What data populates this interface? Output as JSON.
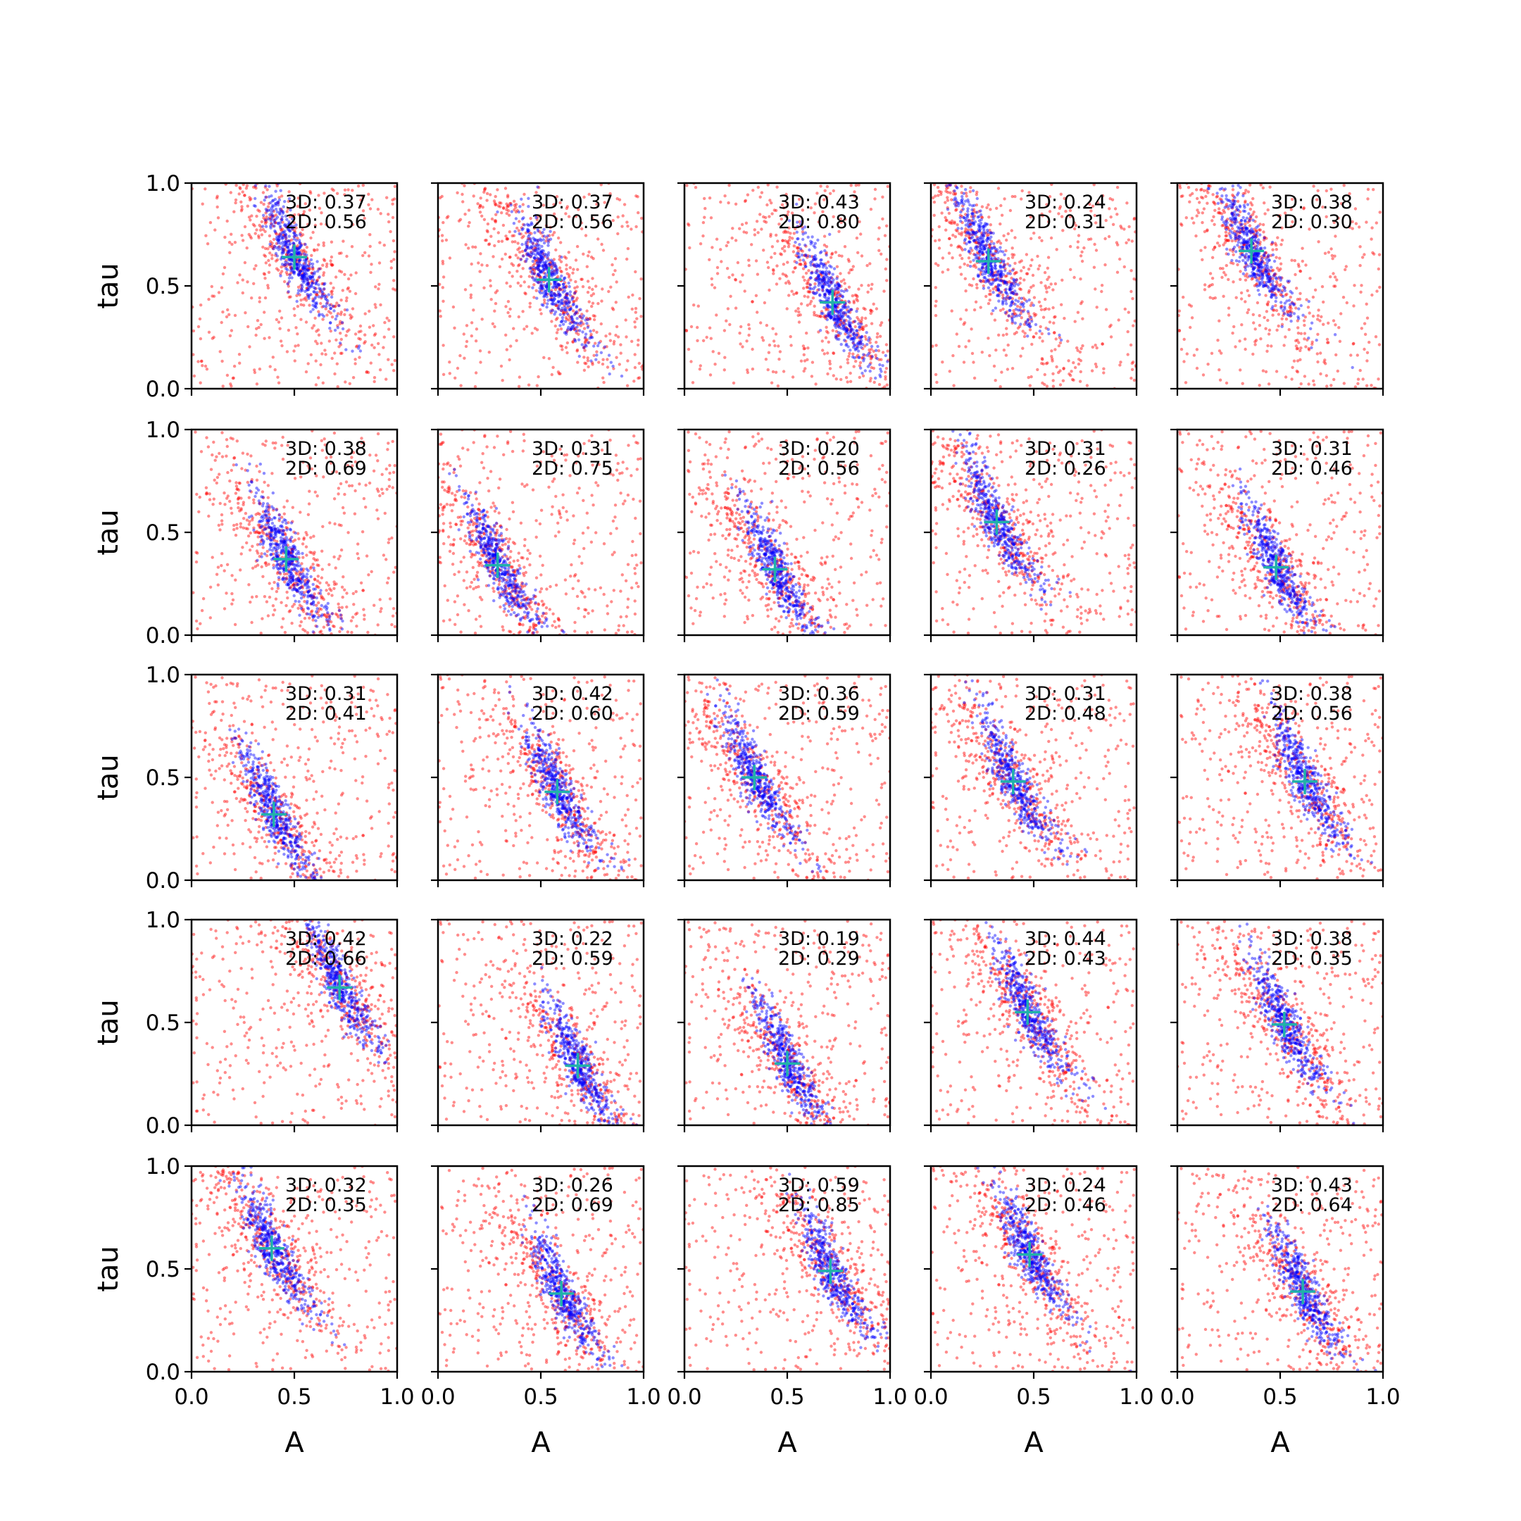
{
  "chart_data": {
    "type": "scatter",
    "grid": false,
    "grid_shape": [
      5,
      5
    ],
    "xlabel": "A",
    "ylabel": "tau",
    "xlim": [
      0.0,
      1.0
    ],
    "ylim": [
      0.0,
      1.0
    ],
    "x_ticks": [
      "0.0",
      "0.5",
      "1.0"
    ],
    "y_ticks": [
      "0.0",
      "0.5",
      "1.0"
    ],
    "colors": {
      "series_3d": "#0000ff",
      "series_2d": "#ff0000",
      "marker": "#20b2aa"
    },
    "stat_label_3d": "3D:",
    "stat_label_2d": "2D:",
    "panels": [
      {
        "row": 0,
        "col": 0,
        "stat_3d": "0.37",
        "stat_2d": "0.56",
        "marker": [
          0.5,
          0.64
        ]
      },
      {
        "row": 0,
        "col": 1,
        "stat_3d": "0.37",
        "stat_2d": "0.56",
        "marker": [
          0.54,
          0.53
        ]
      },
      {
        "row": 0,
        "col": 2,
        "stat_3d": "0.43",
        "stat_2d": "0.80",
        "marker": [
          0.72,
          0.42
        ]
      },
      {
        "row": 0,
        "col": 3,
        "stat_3d": "0.24",
        "stat_2d": "0.31",
        "marker": [
          0.28,
          0.62
        ]
      },
      {
        "row": 0,
        "col": 4,
        "stat_3d": "0.38",
        "stat_2d": "0.30",
        "marker": [
          0.36,
          0.67
        ]
      },
      {
        "row": 1,
        "col": 0,
        "stat_3d": "0.38",
        "stat_2d": "0.69",
        "marker": [
          0.46,
          0.37
        ]
      },
      {
        "row": 1,
        "col": 1,
        "stat_3d": "0.31",
        "stat_2d": "0.75",
        "marker": [
          0.29,
          0.34
        ]
      },
      {
        "row": 1,
        "col": 2,
        "stat_3d": "0.20",
        "stat_2d": "0.56",
        "marker": [
          0.44,
          0.32
        ]
      },
      {
        "row": 1,
        "col": 3,
        "stat_3d": "0.31",
        "stat_2d": "0.26",
        "marker": [
          0.32,
          0.55
        ]
      },
      {
        "row": 1,
        "col": 4,
        "stat_3d": "0.31",
        "stat_2d": "0.46",
        "marker": [
          0.48,
          0.33
        ]
      },
      {
        "row": 2,
        "col": 0,
        "stat_3d": "0.31",
        "stat_2d": "0.41",
        "marker": [
          0.4,
          0.32
        ]
      },
      {
        "row": 2,
        "col": 1,
        "stat_3d": "0.42",
        "stat_2d": "0.60",
        "marker": [
          0.58,
          0.43
        ]
      },
      {
        "row": 2,
        "col": 2,
        "stat_3d": "0.36",
        "stat_2d": "0.59",
        "marker": [
          0.34,
          0.5
        ]
      },
      {
        "row": 2,
        "col": 3,
        "stat_3d": "0.31",
        "stat_2d": "0.48",
        "marker": [
          0.4,
          0.48
        ]
      },
      {
        "row": 2,
        "col": 4,
        "stat_3d": "0.38",
        "stat_2d": "0.56",
        "marker": [
          0.62,
          0.48
        ]
      },
      {
        "row": 3,
        "col": 0,
        "stat_3d": "0.42",
        "stat_2d": "0.66",
        "marker": [
          0.72,
          0.67
        ]
      },
      {
        "row": 3,
        "col": 1,
        "stat_3d": "0.22",
        "stat_2d": "0.59",
        "marker": [
          0.68,
          0.29
        ]
      },
      {
        "row": 3,
        "col": 2,
        "stat_3d": "0.19",
        "stat_2d": "0.29",
        "marker": [
          0.5,
          0.3
        ]
      },
      {
        "row": 3,
        "col": 3,
        "stat_3d": "0.44",
        "stat_2d": "0.43",
        "marker": [
          0.47,
          0.55
        ]
      },
      {
        "row": 3,
        "col": 4,
        "stat_3d": "0.38",
        "stat_2d": "0.35",
        "marker": [
          0.52,
          0.49
        ]
      },
      {
        "row": 4,
        "col": 0,
        "stat_3d": "0.32",
        "stat_2d": "0.35",
        "marker": [
          0.39,
          0.6
        ]
      },
      {
        "row": 4,
        "col": 1,
        "stat_3d": "0.26",
        "stat_2d": "0.69",
        "marker": [
          0.6,
          0.38
        ]
      },
      {
        "row": 4,
        "col": 2,
        "stat_3d": "0.59",
        "stat_2d": "0.85",
        "marker": [
          0.71,
          0.49
        ]
      },
      {
        "row": 4,
        "col": 3,
        "stat_3d": "0.24",
        "stat_2d": "0.46",
        "marker": [
          0.48,
          0.57
        ]
      },
      {
        "row": 4,
        "col": 4,
        "stat_3d": "0.43",
        "stat_2d": "0.64",
        "marker": [
          0.61,
          0.39
        ]
      }
    ]
  }
}
